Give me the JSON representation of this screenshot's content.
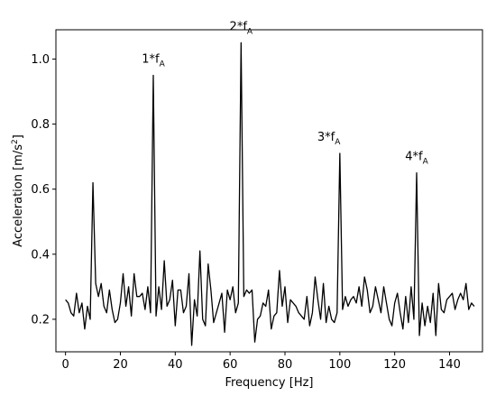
{
  "chart_data": {
    "type": "line",
    "title": "",
    "xlabel": "Frequency [Hz]",
    "ylabel_main": "Acceleration [m/s",
    "ylabel_exp": "2",
    "ylabel_close": "]",
    "xlim": [
      -3.5,
      152
    ],
    "ylim": [
      0.1,
      1.09
    ],
    "xticks": [
      0,
      20,
      40,
      60,
      80,
      100,
      120,
      140
    ],
    "xtick_labels": [
      "0",
      "20",
      "40",
      "60",
      "80",
      "100",
      "120",
      "140"
    ],
    "yticks": [
      0.2,
      0.4,
      0.6,
      0.8,
      1.0
    ],
    "ytick_labels": [
      "0.2",
      "0.4",
      "0.6",
      "0.8",
      "1.0"
    ],
    "grid": false,
    "line_color": "#000000",
    "series": [
      {
        "x": [
          0,
          1,
          2,
          3,
          4,
          5,
          6,
          7,
          8,
          9,
          10,
          11,
          12,
          13,
          14,
          15,
          16,
          17,
          18,
          19,
          20,
          21,
          22,
          23,
          24,
          25,
          26,
          27,
          28,
          29,
          30,
          31,
          32,
          33,
          34,
          35,
          36,
          37,
          38,
          39,
          40,
          41,
          42,
          43,
          44,
          45,
          46,
          47,
          48,
          49,
          50,
          51,
          52,
          53,
          54,
          55,
          56,
          57,
          58,
          59,
          60,
          61,
          62,
          63,
          64,
          65,
          66,
          67,
          68,
          69,
          70,
          71,
          72,
          73,
          74,
          75,
          76,
          77,
          78,
          79,
          80,
          81,
          82,
          83,
          84,
          85,
          86,
          87,
          88,
          89,
          90,
          91,
          92,
          93,
          94,
          95,
          96,
          97,
          98,
          99,
          100,
          101,
          102,
          103,
          104,
          105,
          106,
          107,
          108,
          109,
          110,
          111,
          112,
          113,
          114,
          115,
          116,
          117,
          118,
          119,
          120,
          121,
          122,
          123,
          124,
          125,
          126,
          127,
          128,
          129,
          130,
          131,
          132,
          133,
          134,
          135,
          136,
          137,
          138,
          139,
          140,
          141,
          142,
          143,
          144,
          145,
          146,
          147,
          148,
          149
        ],
        "y": [
          0.26,
          0.25,
          0.22,
          0.21,
          0.28,
          0.22,
          0.25,
          0.17,
          0.24,
          0.2,
          0.62,
          0.31,
          0.27,
          0.31,
          0.24,
          0.22,
          0.29,
          0.23,
          0.19,
          0.2,
          0.25,
          0.34,
          0.24,
          0.3,
          0.21,
          0.34,
          0.27,
          0.27,
          0.28,
          0.23,
          0.3,
          0.22,
          0.95,
          0.21,
          0.3,
          0.23,
          0.38,
          0.24,
          0.26,
          0.32,
          0.18,
          0.29,
          0.29,
          0.22,
          0.24,
          0.34,
          0.12,
          0.26,
          0.21,
          0.41,
          0.2,
          0.18,
          0.37,
          0.29,
          0.19,
          0.22,
          0.25,
          0.28,
          0.16,
          0.29,
          0.26,
          0.3,
          0.22,
          0.25,
          1.05,
          0.27,
          0.29,
          0.28,
          0.29,
          0.13,
          0.2,
          0.21,
          0.25,
          0.24,
          0.29,
          0.17,
          0.21,
          0.22,
          0.35,
          0.24,
          0.3,
          0.19,
          0.26,
          0.25,
          0.24,
          0.22,
          0.21,
          0.2,
          0.27,
          0.18,
          0.22,
          0.33,
          0.26,
          0.2,
          0.31,
          0.19,
          0.24,
          0.2,
          0.19,
          0.22,
          0.71,
          0.23,
          0.27,
          0.24,
          0.26,
          0.27,
          0.25,
          0.3,
          0.24,
          0.33,
          0.29,
          0.22,
          0.24,
          0.3,
          0.26,
          0.22,
          0.3,
          0.25,
          0.2,
          0.18,
          0.25,
          0.28,
          0.22,
          0.17,
          0.27,
          0.19,
          0.3,
          0.2,
          0.65,
          0.15,
          0.25,
          0.18,
          0.24,
          0.19,
          0.28,
          0.15,
          0.31,
          0.23,
          0.22,
          0.26,
          0.27,
          0.28,
          0.23,
          0.26,
          0.28,
          0.26,
          0.31,
          0.23,
          0.25,
          0.24
        ]
      }
    ],
    "annotations": [
      {
        "base": "1*f",
        "sub": "A",
        "x": 32,
        "y": 0.95
      },
      {
        "base": "2*f",
        "sub": "A",
        "x": 64,
        "y": 1.05
      },
      {
        "base": "3*f",
        "sub": "A",
        "x": 96,
        "y": 0.71
      },
      {
        "base": "4*f",
        "sub": "A",
        "x": 128,
        "y": 0.65
      }
    ]
  }
}
